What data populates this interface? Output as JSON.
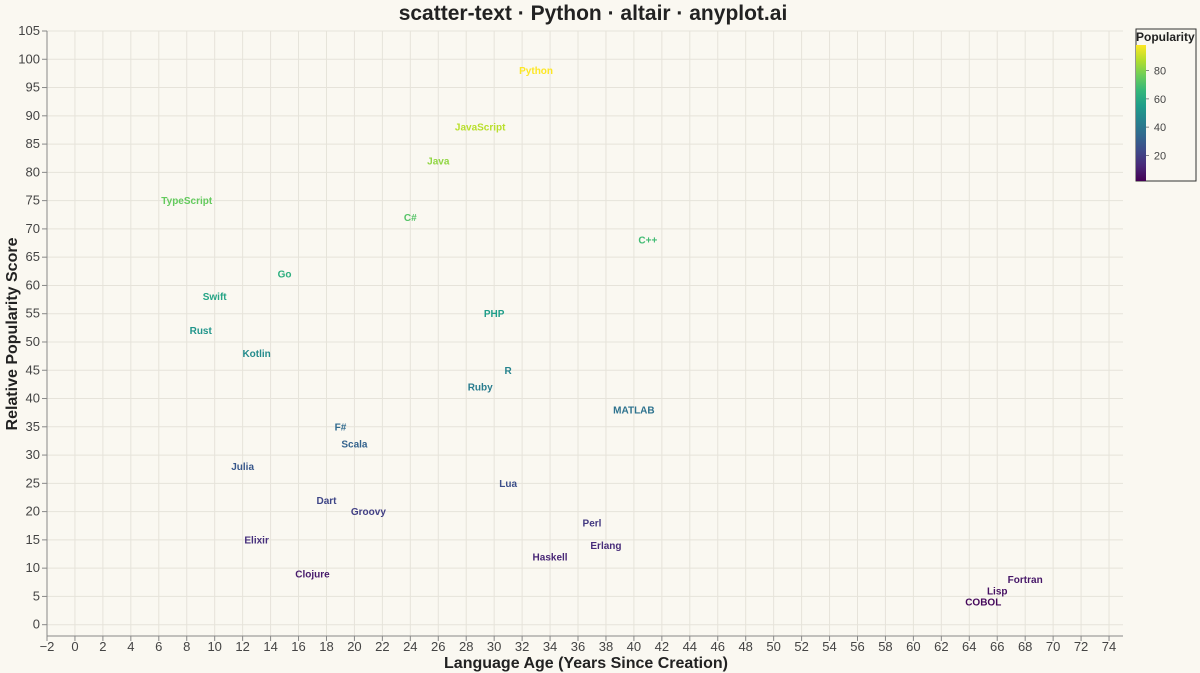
{
  "chart_data": {
    "type": "scatter",
    "title": "scatter-text · Python · altair · anyplot.ai",
    "xlabel": "Language Age (Years Since Creation)",
    "ylabel": "Relative Popularity Score",
    "xlim": [
      -2,
      75
    ],
    "ylim": [
      -2,
      105
    ],
    "x_ticks": [
      -2,
      0,
      2,
      4,
      6,
      8,
      10,
      12,
      14,
      16,
      18,
      20,
      22,
      24,
      26,
      28,
      30,
      32,
      34,
      36,
      38,
      40,
      42,
      44,
      46,
      48,
      50,
      52,
      54,
      56,
      58,
      60,
      62,
      64,
      66,
      68,
      70,
      72,
      74
    ],
    "y_ticks": [
      0,
      5,
      10,
      15,
      20,
      25,
      30,
      35,
      40,
      45,
      50,
      55,
      60,
      65,
      70,
      75,
      80,
      85,
      90,
      95,
      100,
      105
    ],
    "grid": true,
    "legend": {
      "title": "Popularity",
      "placement": "top-right",
      "ticks": [
        20,
        40,
        60,
        80
      ],
      "domain": [
        2,
        98
      ],
      "colormap": [
        "#440154",
        "#482878",
        "#3E4A89",
        "#31688E",
        "#26828E",
        "#1F9E89",
        "#35B779",
        "#6DCD59",
        "#B4DE2C",
        "#FDE725"
      ]
    },
    "points": [
      {
        "label": "Python",
        "x": 33,
        "y": 98
      },
      {
        "label": "JavaScript",
        "x": 29,
        "y": 88
      },
      {
        "label": "Java",
        "x": 26,
        "y": 82
      },
      {
        "label": "TypeScript",
        "x": 8,
        "y": 75
      },
      {
        "label": "C#",
        "x": 24,
        "y": 72
      },
      {
        "label": "C++",
        "x": 41,
        "y": 68
      },
      {
        "label": "Go",
        "x": 15,
        "y": 62
      },
      {
        "label": "Swift",
        "x": 10,
        "y": 58
      },
      {
        "label": "PHP",
        "x": 30,
        "y": 55
      },
      {
        "label": "Rust",
        "x": 9,
        "y": 52
      },
      {
        "label": "Kotlin",
        "x": 13,
        "y": 48
      },
      {
        "label": "R",
        "x": 31,
        "y": 45
      },
      {
        "label": "Ruby",
        "x": 29,
        "y": 42
      },
      {
        "label": "MATLAB",
        "x": 40,
        "y": 38
      },
      {
        "label": "F#",
        "x": 19,
        "y": 35
      },
      {
        "label": "Scala",
        "x": 20,
        "y": 32
      },
      {
        "label": "Julia",
        "x": 12,
        "y": 28
      },
      {
        "label": "Lua",
        "x": 31,
        "y": 25
      },
      {
        "label": "Dart",
        "x": 18,
        "y": 22
      },
      {
        "label": "Groovy",
        "x": 21,
        "y": 20
      },
      {
        "label": "Perl",
        "x": 37,
        "y": 18
      },
      {
        "label": "Elixir",
        "x": 13,
        "y": 15
      },
      {
        "label": "Erlang",
        "x": 38,
        "y": 14
      },
      {
        "label": "Haskell",
        "x": 34,
        "y": 12
      },
      {
        "label": "Clojure",
        "x": 17,
        "y": 9
      },
      {
        "label": "Fortran",
        "x": 68,
        "y": 8
      },
      {
        "label": "Lisp",
        "x": 66,
        "y": 6
      },
      {
        "label": "COBOL",
        "x": 65,
        "y": 4
      }
    ]
  }
}
